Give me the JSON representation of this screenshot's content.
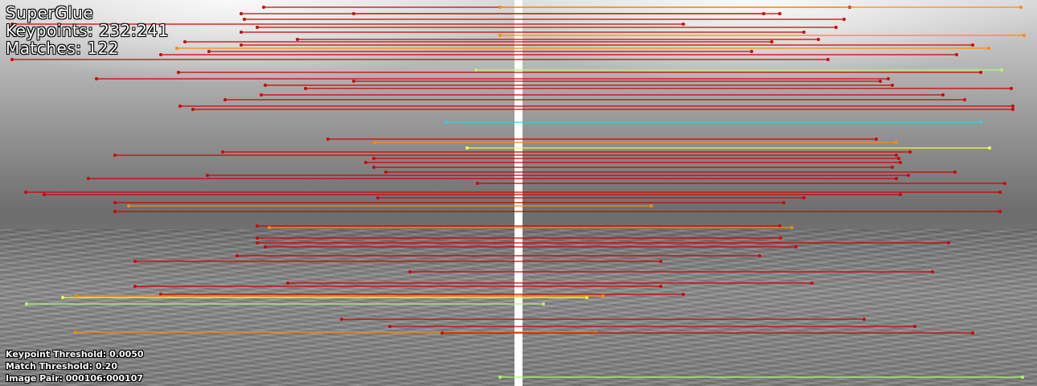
{
  "hud": {
    "method": "SuperGlue",
    "keypoints": "Keypoints: 232:241",
    "matches": "Matches: 122",
    "keypoint_threshold": "Keypoint Threshold: 0.0050",
    "match_threshold": "Match Threshold: 0.20",
    "image_pair": "Image Pair: 000106:000107"
  },
  "colors": {
    "high_confidence": "#d40000",
    "mid_confidence": "#ff8a00",
    "low_confidence": "#a8ff6a",
    "cyan_match": "#2fd0e8",
    "yellow_match": "#f0ff40"
  }
}
